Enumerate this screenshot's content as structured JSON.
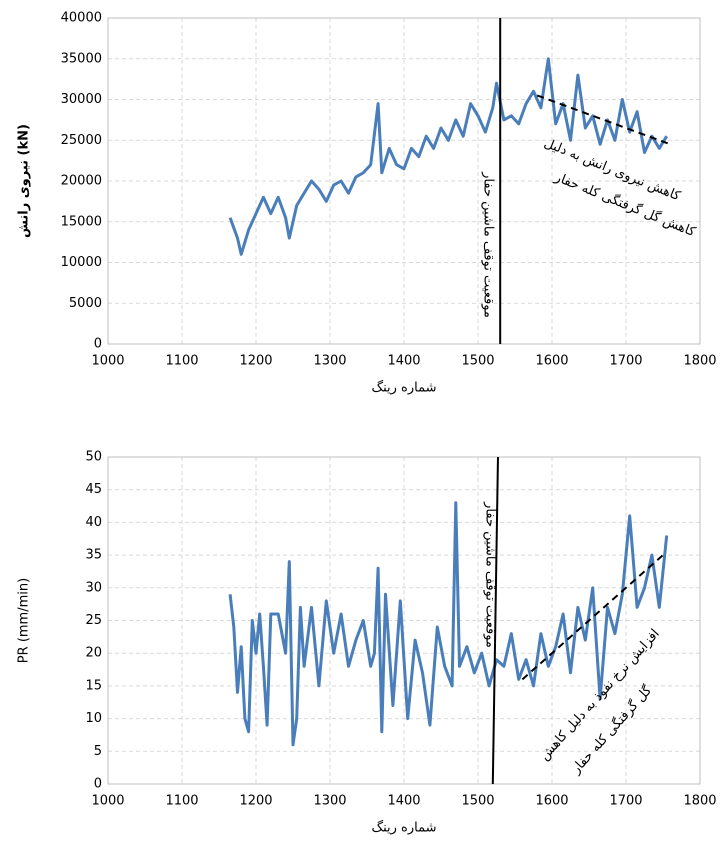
{
  "chart_data": [
    {
      "type": "line",
      "ylabel": "نیروی رانش (kN)",
      "xlabel": "شماره رینگ",
      "x": [
        1165,
        1175,
        1180,
        1190,
        1200,
        1210,
        1220,
        1230,
        1240,
        1245,
        1255,
        1265,
        1275,
        1285,
        1295,
        1305,
        1315,
        1325,
        1335,
        1345,
        1355,
        1365,
        1370,
        1380,
        1390,
        1400,
        1410,
        1420,
        1430,
        1440,
        1450,
        1460,
        1470,
        1480,
        1490,
        1500,
        1510,
        1520,
        1525,
        1535,
        1545,
        1555,
        1565,
        1575,
        1585,
        1595,
        1605,
        1615,
        1625,
        1635,
        1645,
        1655,
        1665,
        1675,
        1685,
        1695,
        1705,
        1715,
        1725,
        1735,
        1745,
        1755
      ],
      "series": [
        {
          "color": "#4a7ebb",
          "values": [
            15500,
            13000,
            11000,
            14000,
            16000,
            18000,
            16000,
            18000,
            15500,
            13000,
            17000,
            18500,
            20000,
            19000,
            17500,
            19500,
            20000,
            18500,
            20500,
            21000,
            22000,
            29500,
            21000,
            24000,
            22000,
            21500,
            24000,
            23000,
            25500,
            24000,
            26500,
            25000,
            27500,
            25500,
            29500,
            28000,
            26000,
            29000,
            32000,
            27500,
            28000,
            27000,
            29500,
            31000,
            29000,
            35000,
            27000,
            29500,
            25000,
            33000,
            26500,
            28000,
            24500,
            27500,
            25000,
            30000,
            26000,
            28500,
            23500,
            25500,
            24000,
            25500
          ]
        }
      ],
      "xlim": [
        1000,
        1800
      ],
      "xticks": [
        1000,
        1100,
        1200,
        1300,
        1400,
        1500,
        1600,
        1700,
        1800
      ],
      "ylim": [
        0,
        40000
      ],
      "yticks": [
        0,
        5000,
        10000,
        15000,
        20000,
        25000,
        30000,
        35000,
        40000
      ],
      "grid": true,
      "reference_lines": [
        {
          "x": [
            1530,
            1530
          ],
          "y": [
            0,
            40000
          ],
          "dashed": false
        },
        {
          "x": [
            1580,
            1760
          ],
          "y": [
            30500,
            24500
          ],
          "dashed": true
        }
      ],
      "annotations": [
        "موقعیت توقف ماشین حفار",
        "کاهش نیروی رانش به دلیل",
        "کاهش گل گرفتگی کله حفار"
      ]
    },
    {
      "type": "line",
      "ylabel": "PR (mm/min)",
      "xlabel": "شماره رینگ",
      "x": [
        1165,
        1170,
        1175,
        1180,
        1185,
        1190,
        1195,
        1200,
        1205,
        1210,
        1215,
        1220,
        1230,
        1240,
        1245,
        1250,
        1255,
        1260,
        1265,
        1275,
        1285,
        1295,
        1305,
        1315,
        1325,
        1335,
        1345,
        1355,
        1360,
        1365,
        1370,
        1375,
        1385,
        1395,
        1405,
        1415,
        1425,
        1435,
        1445,
        1455,
        1465,
        1470,
        1475,
        1485,
        1495,
        1505,
        1515,
        1525,
        1535,
        1545,
        1555,
        1565,
        1575,
        1585,
        1595,
        1605,
        1615,
        1625,
        1635,
        1645,
        1655,
        1665,
        1675,
        1685,
        1695,
        1705,
        1715,
        1725,
        1735,
        1745,
        1755
      ],
      "series": [
        {
          "color": "#4a7ebb",
          "values": [
            29,
            24,
            14,
            21,
            10,
            8,
            25,
            20,
            26,
            18,
            9,
            26,
            26,
            20,
            34,
            6,
            10,
            27,
            18,
            27,
            15,
            28,
            20,
            26,
            18,
            22,
            25,
            18,
            20,
            33,
            8,
            29,
            12,
            28,
            10,
            22,
            17,
            9,
            24,
            18,
            15,
            43,
            18,
            21,
            17,
            20,
            15,
            19,
            18,
            23,
            16,
            19,
            15,
            23,
            18,
            21,
            26,
            17,
            27,
            22,
            30,
            13,
            27,
            23,
            29,
            41,
            27,
            30,
            35,
            27,
            38
          ]
        }
      ],
      "xlim": [
        1000,
        1800
      ],
      "xticks": [
        1000,
        1100,
        1200,
        1300,
        1400,
        1500,
        1600,
        1700,
        1800
      ],
      "ylim": [
        0,
        50
      ],
      "yticks": [
        0,
        5,
        10,
        15,
        20,
        25,
        30,
        35,
        40,
        45,
        50
      ],
      "grid": true,
      "reference_lines": [
        {
          "x": [
            1520,
            1527
          ],
          "y": [
            0,
            50
          ],
          "dashed": false
        },
        {
          "x": [
            1560,
            1750
          ],
          "y": [
            16,
            35
          ],
          "dashed": true
        }
      ],
      "annotations": [
        "موقعیت توقف ماشین حفار",
        "افزایش نرخ نفوذ به دلیل کاهش",
        "گل گرفتگی کله حفار"
      ]
    }
  ]
}
